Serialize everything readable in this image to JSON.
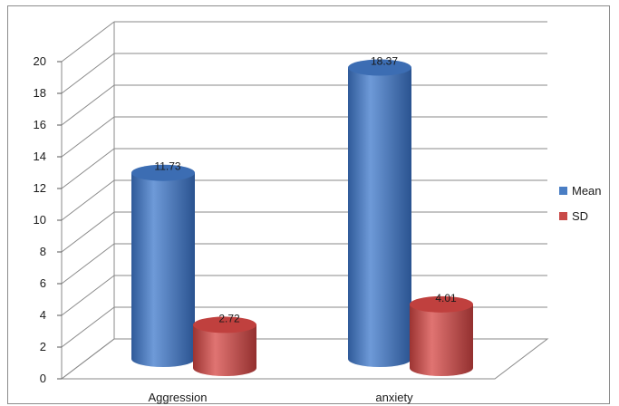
{
  "chart_data": {
    "type": "bar",
    "title": "",
    "xlabel": "",
    "ylabel": "",
    "categories": [
      "Aggression",
      "anxiety"
    ],
    "series": [
      {
        "name": "Mean",
        "values": [
          11.73,
          18.37
        ],
        "labels": [
          "11.73",
          "18.37"
        ],
        "color": "#4a7ec4"
      },
      {
        "name": "SD",
        "values": [
          2.72,
          4.01
        ],
        "labels": [
          "2.72",
          "4.01"
        ],
        "color": "#c94a48"
      }
    ],
    "ylim": [
      0,
      20
    ],
    "yticks": [
      "0",
      "2",
      "4",
      "6",
      "8",
      "10",
      "12",
      "14",
      "16",
      "18",
      "20"
    ],
    "grid": true,
    "legend_position": "right",
    "style": "3d-cylinder"
  }
}
